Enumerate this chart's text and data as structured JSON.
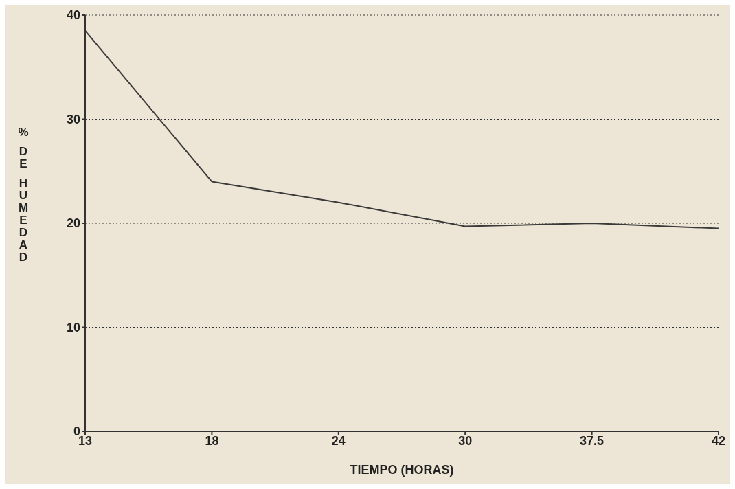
{
  "chart_data": {
    "type": "line",
    "xlabel": "TIEMPO (HORAS)",
    "ylabel": "% DE HUMEDAD",
    "categories": [
      "13",
      "18",
      "24",
      "30",
      "37.5",
      "42"
    ],
    "series": [
      {
        "color": "#3a3a3a",
        "values": [
          38.5,
          24,
          22,
          19.7,
          20,
          19.5
        ]
      }
    ],
    "ylim": [
      0,
      40
    ],
    "yticks": [
      0,
      10,
      20,
      30,
      40
    ],
    "grid": "y",
    "marker": "none",
    "line_style": "solid",
    "legend": false
  }
}
